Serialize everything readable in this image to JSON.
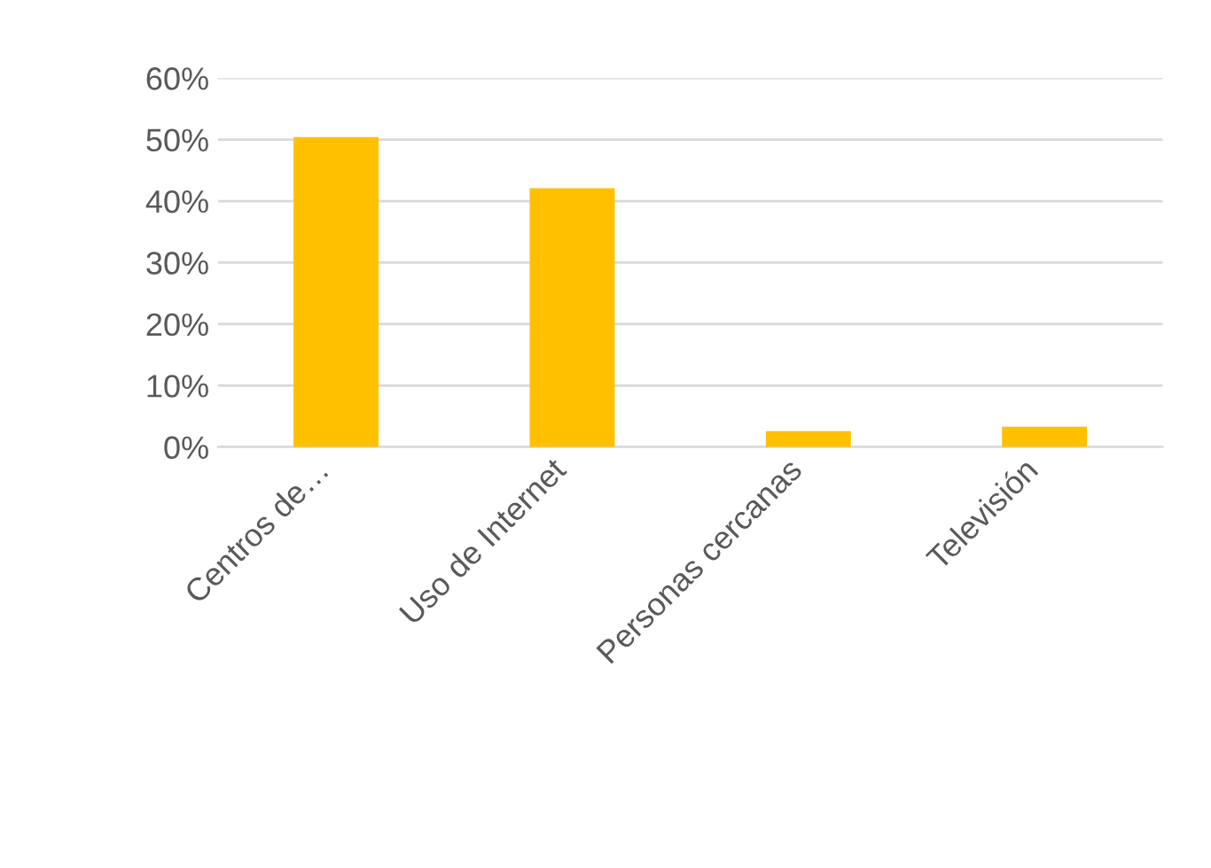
{
  "chart_data": {
    "type": "bar",
    "categories": [
      "Centros de…",
      "Uso de Internet",
      "Personas cercanas",
      "Televisión"
    ],
    "values": [
      50.4,
      42.1,
      2.6,
      3.3
    ],
    "color": "#ffc000",
    "ylim": [
      0,
      60
    ],
    "yticks": [
      {
        "value": 0,
        "label": "0%"
      },
      {
        "value": 10,
        "label": "10%"
      },
      {
        "value": 20,
        "label": "20%"
      },
      {
        "value": 30,
        "label": "30%"
      },
      {
        "value": 40,
        "label": "40%"
      },
      {
        "value": 50,
        "label": "50%"
      },
      {
        "value": 60,
        "label": "60%"
      }
    ],
    "grid": "y"
  }
}
